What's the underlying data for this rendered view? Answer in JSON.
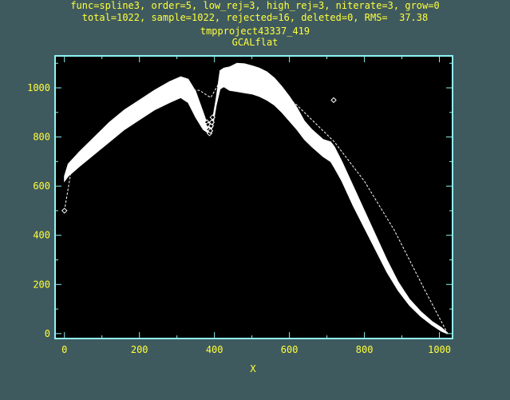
{
  "header": {
    "line1": "func=spline3, order=5, low_rej=3, high_rej=3, niterate=3, grow=0",
    "line2": "total=1022, sample=1022, rejected=16, deleted=0, RMS=  37.38",
    "line3": "tmpproject43337_419",
    "title": "GCALflat"
  },
  "colors": {
    "background": "#3f5a5e",
    "text": "#ffff3c",
    "axes": "#8ef4f4",
    "plot_bg": "#000000",
    "data": "#ffffff"
  },
  "chart_data": {
    "type": "line",
    "title": "GCALflat",
    "xlabel": "X",
    "ylabel": "",
    "xlim": [
      -25,
      1035
    ],
    "ylim": [
      -20,
      1130
    ],
    "xticks": [
      0,
      200,
      400,
      600,
      800,
      1000
    ],
    "yticks": [
      0,
      200,
      400,
      600,
      800,
      1000
    ],
    "grid": false,
    "series": [
      {
        "kind": "data-envelope",
        "x": [
          0,
          10,
          40,
          80,
          120,
          160,
          200,
          240,
          280,
          310,
          330,
          350,
          370,
          385,
          395,
          405,
          415,
          425,
          440,
          460,
          480,
          500,
          520,
          540,
          560,
          580,
          600,
          620,
          640,
          660,
          690,
          710,
          720,
          740,
          770,
          800,
          830,
          860,
          890,
          920,
          950,
          980,
          1005,
          1020,
          1022
        ],
        "upper": [
          640,
          690,
          740,
          800,
          860,
          910,
          950,
          990,
          1025,
          1045,
          1035,
          985,
          900,
          835,
          870,
          960,
          1070,
          1080,
          1085,
          1100,
          1098,
          1090,
          1080,
          1065,
          1040,
          1005,
          965,
          920,
          865,
          830,
          790,
          780,
          760,
          700,
          600,
          500,
          400,
          300,
          210,
          140,
          90,
          50,
          25,
          5,
          0
        ],
        "lower": [
          620,
          640,
          680,
          730,
          780,
          830,
          870,
          910,
          940,
          960,
          940,
          880,
          830,
          815,
          840,
          930,
          995,
          1005,
          990,
          985,
          980,
          975,
          965,
          950,
          930,
          900,
          865,
          830,
          790,
          760,
          720,
          700,
          675,
          620,
          520,
          430,
          340,
          250,
          175,
          115,
          70,
          35,
          10,
          0,
          0
        ]
      },
      {
        "kind": "fit",
        "x": [
          0,
          20,
          100,
          200,
          300,
          360,
          390,
          420,
          440,
          500,
          560,
          620,
          680,
          720,
          800,
          880,
          960,
          1022
        ],
        "y": [
          500,
          680,
          790,
          900,
          990,
          990,
          960,
          1040,
          1050,
          1040,
          1000,
          930,
          840,
          780,
          620,
          420,
          180,
          0
        ]
      }
    ],
    "rejected_points": {
      "x": [
        0,
        380,
        383,
        385,
        387,
        389,
        391,
        393,
        395,
        718
      ],
      "y": [
        500,
        860,
        850,
        830,
        815,
        825,
        845,
        860,
        880,
        950
      ]
    }
  }
}
